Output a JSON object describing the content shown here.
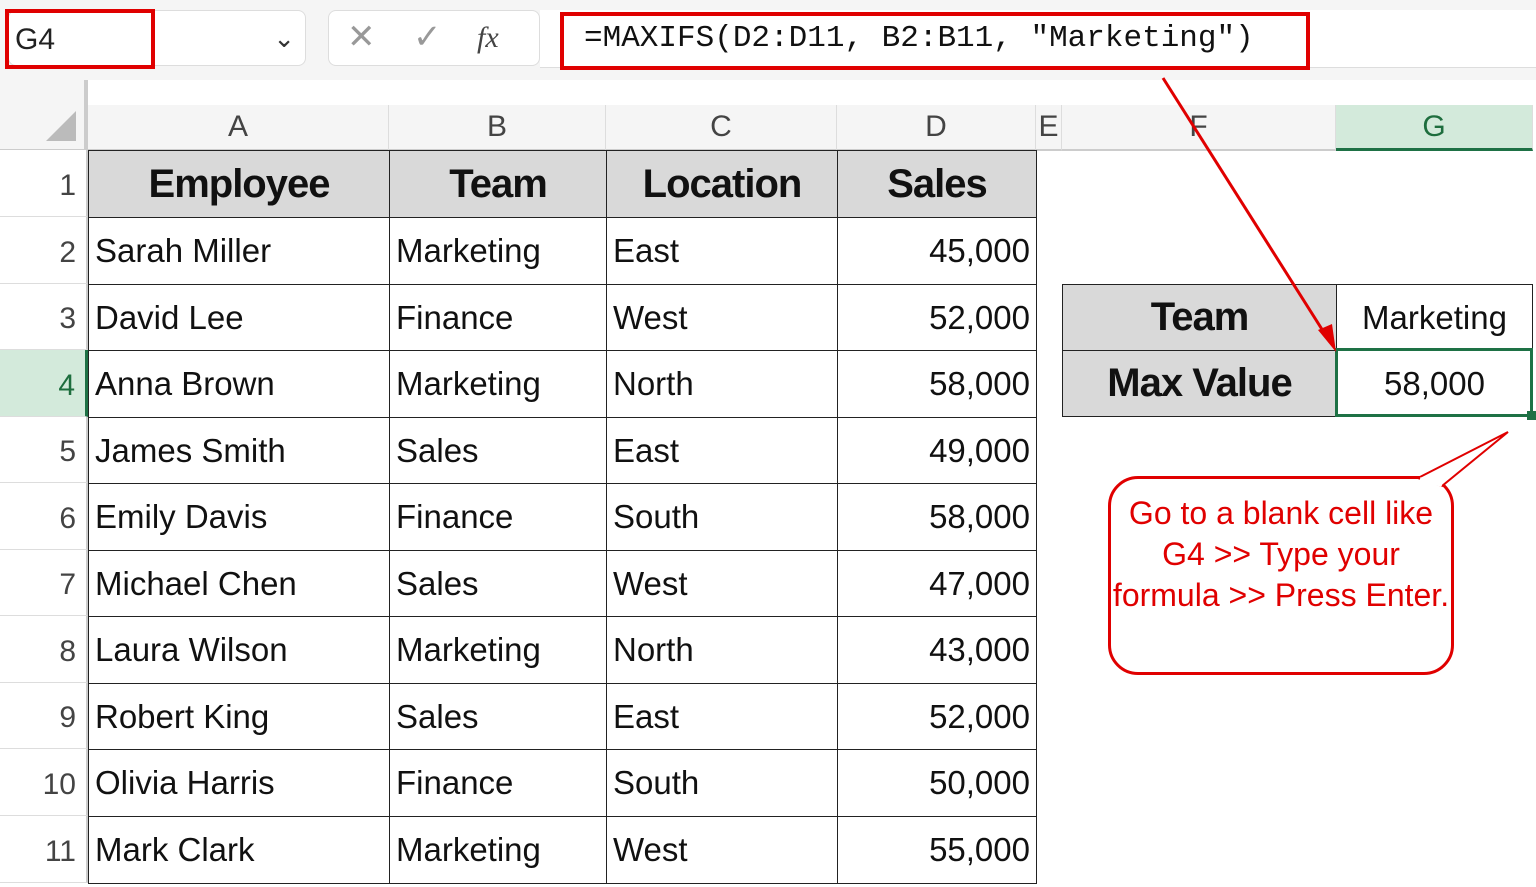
{
  "name_box": {
    "value": "G4"
  },
  "formula_bar": {
    "cancel_icon": "✕",
    "enter_icon": "✓",
    "fx_label": "fx",
    "formula": "=MAXIFS(D2:D11, B2:B11, \"Marketing\")"
  },
  "columns": [
    "A",
    "B",
    "C",
    "D",
    "E",
    "F",
    "G"
  ],
  "rows": [
    "1",
    "2",
    "3",
    "4",
    "5",
    "6",
    "7",
    "8",
    "9",
    "10",
    "11"
  ],
  "selected": {
    "column": "G",
    "row": "4"
  },
  "table": {
    "headers": [
      "Employee",
      "Team",
      "Location",
      "Sales"
    ],
    "rows": [
      [
        "Sarah Miller",
        "Marketing",
        "East",
        "45,000"
      ],
      [
        "David Lee",
        "Finance",
        "West",
        "52,000"
      ],
      [
        "Anna Brown",
        "Marketing",
        "North",
        "58,000"
      ],
      [
        "James Smith",
        "Sales",
        "East",
        "49,000"
      ],
      [
        "Emily Davis",
        "Finance",
        "South",
        "58,000"
      ],
      [
        "Michael Chen",
        "Sales",
        "West",
        "47,000"
      ],
      [
        "Laura Wilson",
        "Marketing",
        "North",
        "43,000"
      ],
      [
        "Robert King",
        "Sales",
        "East",
        "52,000"
      ],
      [
        "Olivia Harris",
        "Finance",
        "South",
        "50,000"
      ],
      [
        "Mark Clark",
        "Marketing",
        "West",
        "55,000"
      ]
    ]
  },
  "summary": {
    "team_label": "Team",
    "team_value": "Marketing",
    "max_label": "Max Value",
    "max_value": "58,000"
  },
  "callout": {
    "text": "Go to a blank cell like G4 >> Type your formula >> Press Enter."
  },
  "colors": {
    "highlight": "#e00000",
    "selection": "#1e7145",
    "header_fill": "#d9d9d9"
  }
}
